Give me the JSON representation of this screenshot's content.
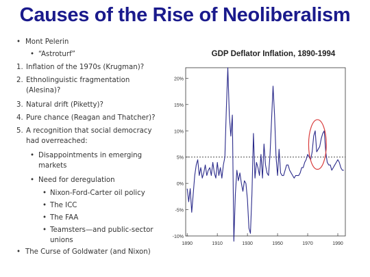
{
  "slide": {
    "title": "Causes of the Rise of Neoliberalism"
  },
  "bullets": [
    {
      "marker": "•",
      "text": "Mont Pelerin"
    },
    {
      "marker": "•",
      "text": "“Astroturf”"
    },
    {
      "marker": "1.",
      "text": "Inflation of the 1970s (Krugman)?"
    },
    {
      "marker": "2.",
      "text": "Ethnolinguistic fragmentation"
    },
    {
      "marker": "",
      "text": "(Alesina)?"
    },
    {
      "marker": "3.",
      "text": "Natural drift (Piketty)?"
    },
    {
      "marker": "4.",
      "text": "Pure chance (Reagan and Thatcher)?"
    },
    {
      "marker": "5.",
      "text": "A recognition that social democracy"
    },
    {
      "marker": "",
      "text": "had overreached:"
    },
    {
      "marker": "•",
      "text": "Disappointments in emerging"
    },
    {
      "marker": "",
      "text": "markets"
    },
    {
      "marker": "•",
      "text": "Need for deregulation"
    },
    {
      "marker": "•",
      "text": "Nixon-Ford-Carter oil policy"
    },
    {
      "marker": "•",
      "text": "The ICC"
    },
    {
      "marker": "•",
      "text": "The FAA"
    },
    {
      "marker": "•",
      "text": "Teamsters—and public-sector"
    },
    {
      "marker": "",
      "text": "unions"
    },
    {
      "marker": "•",
      "text": "The Curse of Goldwater (and Nixon)"
    }
  ],
  "chart_data": {
    "type": "line",
    "title": "GDP Deflator Inflation, 1890-1994",
    "xlabel": "",
    "ylabel": "",
    "xlim": [
      1889,
      1995
    ],
    "ylim": [
      -10,
      22
    ],
    "x_ticks": [
      1890,
      1910,
      1930,
      1950,
      1970,
      1990
    ],
    "y_ticks": [
      -10,
      -5,
      0,
      5,
      10,
      15,
      20
    ],
    "y_tick_labels": [
      "-10%",
      "-5%",
      "0%",
      "5%",
      "10%",
      "15%",
      "20%"
    ],
    "reference_line": {
      "y": 5,
      "style": "dotted"
    },
    "highlight": {
      "x_range": [
        1972,
        1981
      ],
      "shape": "ellipse",
      "color": "#d93a3a"
    },
    "grid": false,
    "line_color": "#2a2a8a",
    "series": [
      {
        "x": [
          1890,
          1891,
          1892,
          1893,
          1894,
          1895,
          1896,
          1897,
          1898,
          1899,
          1900,
          1901,
          1902,
          1903,
          1904,
          1905,
          1906,
          1907,
          1908,
          1909,
          1910,
          1911,
          1912,
          1913,
          1914,
          1915,
          1916,
          1917,
          1918,
          1919,
          1920,
          1921,
          1922,
          1923,
          1924,
          1925,
          1926,
          1927,
          1928,
          1929,
          1930,
          1931,
          1932,
          1933,
          1934,
          1935,
          1936,
          1937,
          1938,
          1939,
          1940,
          1941,
          1942,
          1943,
          1944,
          1945,
          1946,
          1947,
          1948,
          1949,
          1950,
          1951,
          1952,
          1953,
          1954,
          1955,
          1956,
          1957,
          1958,
          1959,
          1960,
          1961,
          1962,
          1963,
          1964,
          1965,
          1966,
          1967,
          1968,
          1969,
          1970,
          1971,
          1972,
          1973,
          1974,
          1975,
          1976,
          1977,
          1978,
          1979,
          1980,
          1981,
          1982,
          1983,
          1984,
          1985,
          1986,
          1987,
          1988,
          1989,
          1990,
          1991,
          1992,
          1993,
          1994
        ],
        "y": [
          -1.0,
          -3.5,
          -1.0,
          -5.5,
          -2.0,
          1.5,
          3.5,
          4.5,
          1.5,
          3.0,
          1.0,
          2.0,
          3.5,
          1.5,
          2.5,
          3.0,
          1.5,
          4.0,
          2.0,
          1.0,
          4.0,
          1.5,
          3.0,
          1.0,
          3.5,
          5.0,
          14.0,
          22.0,
          13.0,
          9.0,
          13.0,
          -11.0,
          -2.0,
          2.5,
          0.5,
          2.0,
          0.0,
          -1.5,
          0.5,
          0.0,
          -3.0,
          -8.5,
          -9.5,
          -2.0,
          9.5,
          1.0,
          4.0,
          3.0,
          1.5,
          5.5,
          1.0,
          7.5,
          3.5,
          2.0,
          1.5,
          5.5,
          12.0,
          18.5,
          13.0,
          5.0,
          1.5,
          6.5,
          2.0,
          1.5,
          1.5,
          2.5,
          3.5,
          3.5,
          2.5,
          2.0,
          1.5,
          1.0,
          1.5,
          1.5,
          1.5,
          2.0,
          3.0,
          3.0,
          4.0,
          4.5,
          5.5,
          5.0,
          4.5,
          6.0,
          9.0,
          10.0,
          6.0,
          6.5,
          7.0,
          8.5,
          9.5,
          10.0,
          6.0,
          4.0,
          3.5,
          3.5,
          2.5,
          3.0,
          3.5,
          4.0,
          4.5,
          4.0,
          3.0,
          2.5,
          2.5
        ]
      }
    ]
  }
}
